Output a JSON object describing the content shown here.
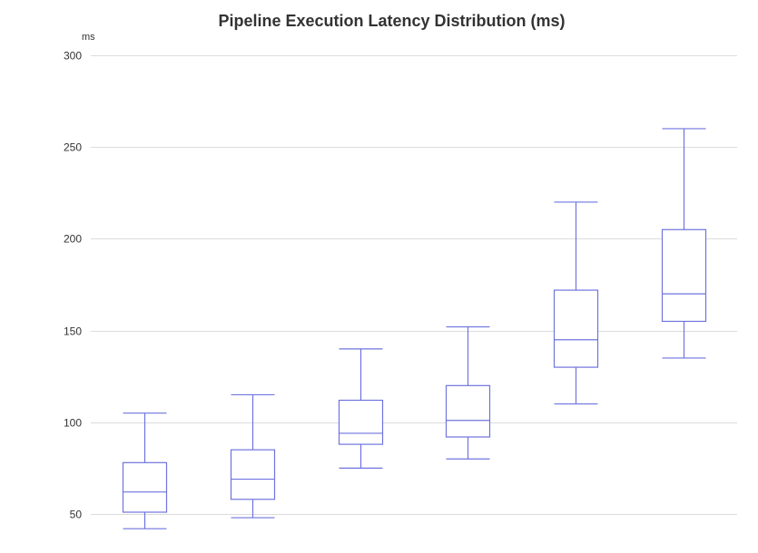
{
  "chart_data": {
    "type": "box",
    "title": "Pipeline Execution Latency Distribution (ms)",
    "ylabel": "ms",
    "xlabel": "",
    "ylim": [
      50,
      300
    ],
    "yticks": [
      50,
      100,
      150,
      200,
      250,
      300
    ],
    "grid": true,
    "color": "#6f74dd",
    "boxes": [
      {
        "min": 42,
        "q1": 51,
        "median": 62,
        "q3": 78,
        "max": 105
      },
      {
        "min": 48,
        "q1": 58,
        "median": 69,
        "q3": 85,
        "max": 115
      },
      {
        "min": 75,
        "q1": 88,
        "median": 94,
        "q3": 112,
        "max": 140
      },
      {
        "min": 80,
        "q1": 92,
        "median": 101,
        "q3": 120,
        "max": 152
      },
      {
        "min": 110,
        "q1": 130,
        "median": 145,
        "q3": 172,
        "max": 220
      },
      {
        "min": 135,
        "q1": 155,
        "median": 170,
        "q3": 205,
        "max": 260
      }
    ]
  }
}
